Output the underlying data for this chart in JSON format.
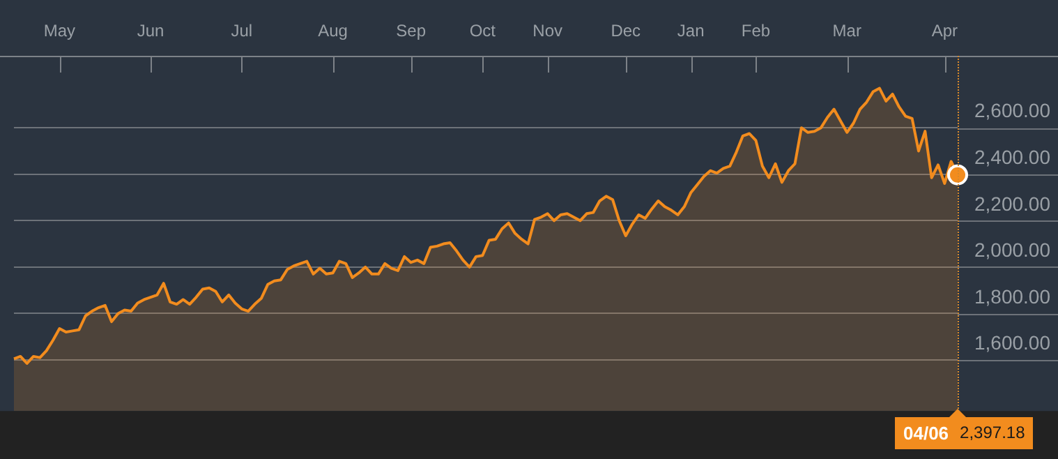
{
  "chart_data": {
    "type": "area",
    "color": "#f28c1e",
    "marker": "none",
    "grid": "y",
    "ylim": [
      1380,
      2910
    ],
    "yticks": [
      {
        "value": 1600,
        "label": "1,600.00"
      },
      {
        "value": 1800,
        "label": "1,800.00"
      },
      {
        "value": 2000,
        "label": "2,000.00"
      },
      {
        "value": 2200,
        "label": "2,200.00"
      },
      {
        "value": 2400,
        "label": "2,400.00"
      },
      {
        "value": 2600,
        "label": "2,600.00"
      }
    ],
    "categories": [
      null,
      null,
      null,
      null,
      null,
      null,
      null,
      "May",
      null,
      null,
      null,
      null,
      null,
      null,
      null,
      null,
      null,
      null,
      null,
      null,
      null,
      "Jun",
      null,
      null,
      null,
      null,
      null,
      null,
      null,
      null,
      null,
      null,
      null,
      null,
      null,
      "Jul",
      null,
      null,
      null,
      null,
      null,
      null,
      null,
      null,
      null,
      null,
      null,
      null,
      null,
      "Aug",
      null,
      null,
      null,
      null,
      null,
      null,
      null,
      null,
      null,
      null,
      null,
      "Sep",
      null,
      null,
      null,
      null,
      null,
      null,
      null,
      null,
      null,
      null,
      "Oct",
      null,
      null,
      null,
      null,
      null,
      null,
      null,
      null,
      null,
      "Nov",
      null,
      null,
      null,
      null,
      null,
      null,
      null,
      null,
      null,
      null,
      null,
      "Dec",
      null,
      null,
      null,
      null,
      null,
      null,
      null,
      null,
      null,
      "Jan",
      null,
      null,
      null,
      null,
      null,
      null,
      null,
      null,
      null,
      "Feb",
      null,
      null,
      null,
      null,
      null,
      null,
      null,
      null,
      null,
      null,
      null,
      null,
      null,
      "Mar",
      null,
      null,
      null,
      null,
      null,
      null,
      null,
      null,
      null,
      null,
      null,
      null,
      null,
      null,
      "Apr",
      null,
      null
    ],
    "values": [
      1605,
      1615,
      1585,
      1615,
      1610,
      1640,
      1685,
      1735,
      1720,
      1725,
      1730,
      1790,
      1810,
      1825,
      1835,
      1765,
      1800,
      1815,
      1810,
      1845,
      1860,
      1870,
      1880,
      1930,
      1850,
      1840,
      1860,
      1840,
      1870,
      1905,
      1910,
      1895,
      1850,
      1880,
      1845,
      1820,
      1810,
      1840,
      1865,
      1925,
      1940,
      1945,
      1990,
      2005,
      2015,
      2025,
      1970,
      1995,
      1970,
      1975,
      2025,
      2015,
      1955,
      1975,
      2000,
      1970,
      1970,
      2015,
      1995,
      1985,
      2045,
      2020,
      2030,
      2015,
      2085,
      2090,
      2100,
      2105,
      2070,
      2030,
      2000,
      2045,
      2050,
      2115,
      2120,
      2165,
      2190,
      2145,
      2120,
      2100,
      2205,
      2215,
      2230,
      2200,
      2225,
      2230,
      2215,
      2200,
      2230,
      2235,
      2285,
      2305,
      2290,
      2200,
      2135,
      2185,
      2225,
      2210,
      2250,
      2285,
      2260,
      2245,
      2225,
      2260,
      2320,
      2355,
      2390,
      2415,
      2405,
      2425,
      2435,
      2495,
      2565,
      2575,
      2545,
      2435,
      2385,
      2445,
      2365,
      2415,
      2445,
      2600,
      2580,
      2585,
      2600,
      2645,
      2680,
      2630,
      2580,
      2620,
      2680,
      2710,
      2755,
      2770,
      2715,
      2745,
      2690,
      2650,
      2640,
      2500,
      2585,
      2385,
      2440,
      2360,
      2455,
      2397.18
    ],
    "annotations": [
      "04/06",
      "2,397.18"
    ]
  }
}
